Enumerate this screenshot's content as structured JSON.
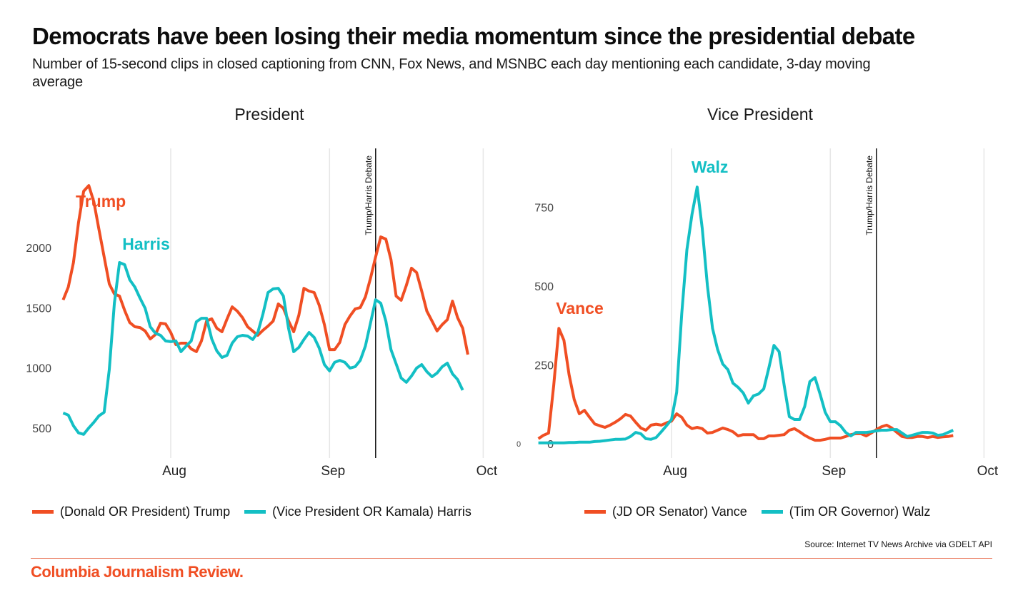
{
  "header": {
    "title": "Democrats have been losing their media momentum since the presidential debate",
    "subtitle": "Number of 15-second clips in closed captioning from CNN, Fox News, and MSNBC each day mentioning each candidate, 3-day moving average"
  },
  "colors": {
    "republican": "#f04e23",
    "democrat": "#13bfc4",
    "grid": "#e6e6e6",
    "annotation_line": "#111111",
    "brand": "#f04e23"
  },
  "chart_data": [
    {
      "type": "line",
      "title": "President",
      "xlabel": "",
      "ylabel": "",
      "x_start": "2024-07-11",
      "x_step": "1 day",
      "xlim": [
        "2024-07-11",
        "2024-10-01"
      ],
      "ylim": [
        0,
        2550
      ],
      "yticks": [
        500,
        1000,
        1500,
        2000
      ],
      "xticks": [
        {
          "label": "Aug",
          "date": "2024-08-01"
        },
        {
          "label": "Sep",
          "date": "2024-09-01"
        },
        {
          "label": "Oct",
          "date": "2024-10-01"
        }
      ],
      "grid": "vertical",
      "annotations": [
        {
          "label": "Trump/Harris Debate",
          "date": "2024-09-10"
        }
      ],
      "series": [
        {
          "name": "(Donald OR President) Trump",
          "short": "Trump",
          "color": "#f04e23",
          "label_at": "2024-07-14",
          "values": [
            1565,
            1672,
            1876,
            2208,
            2469,
            2516,
            2380,
            2149,
            1923,
            1698,
            1615,
            1597,
            1478,
            1377,
            1342,
            1336,
            1307,
            1241,
            1277,
            1372,
            1366,
            1295,
            1194,
            1206,
            1206,
            1158,
            1135,
            1224,
            1390,
            1408,
            1330,
            1301,
            1408,
            1508,
            1472,
            1419,
            1342,
            1307,
            1271,
            1313,
            1348,
            1390,
            1532,
            1496,
            1390,
            1301,
            1437,
            1662,
            1639,
            1627,
            1520,
            1360,
            1152,
            1152,
            1212,
            1360,
            1431,
            1490,
            1502,
            1591,
            1745,
            1923,
            2089,
            2071,
            1900,
            1597,
            1562,
            1686,
            1829,
            1793,
            1639,
            1472,
            1390,
            1307,
            1360,
            1401,
            1556,
            1419,
            1330,
            1111
          ]
        },
        {
          "name": "(Vice President OR Kamala) Harris",
          "short": "Harris",
          "color": "#13bfc4",
          "label_at": "2024-07-22",
          "values": [
            625,
            608,
            519,
            460,
            448,
            501,
            548,
            602,
            631,
            987,
            1538,
            1876,
            1858,
            1733,
            1672,
            1580,
            1496,
            1342,
            1289,
            1271,
            1224,
            1218,
            1224,
            1135,
            1182,
            1224,
            1384,
            1413,
            1413,
            1241,
            1141,
            1087,
            1105,
            1206,
            1259,
            1271,
            1265,
            1236,
            1295,
            1449,
            1627,
            1657,
            1662,
            1597,
            1330,
            1135,
            1170,
            1236,
            1295,
            1254,
            1164,
            1028,
            975,
            1046,
            1063,
            1046,
            999,
            1010,
            1063,
            1182,
            1372,
            1567,
            1538,
            1390,
            1152,
            1034,
            916,
            880,
            933,
            999,
            1028,
            969,
            927,
            957,
            1010,
            1040,
            951,
            904,
            815
          ]
        }
      ],
      "legend": "bottom-left"
    },
    {
      "type": "line",
      "title": "Vice President",
      "xlabel": "",
      "ylabel": "",
      "x_start": "2024-07-06",
      "x_step": "1 day",
      "xlim": [
        "2024-07-06",
        "2024-10-01"
      ],
      "ylim": [
        0,
        900
      ],
      "yticks": [
        0,
        250,
        500,
        750
      ],
      "extra_tick_label": "0",
      "xticks": [
        {
          "label": "Aug",
          "date": "2024-08-01"
        },
        {
          "label": "Sep",
          "date": "2024-09-01"
        },
        {
          "label": "Oct",
          "date": "2024-10-01"
        }
      ],
      "grid": "vertical",
      "annotations": [
        {
          "label": "Trump/Harris Debate",
          "date": "2024-09-10"
        }
      ],
      "series": [
        {
          "name": "(JD OR Senator) Vance",
          "short": "Vance",
          "color": "#f04e23",
          "label_at": "2024-07-10",
          "values": [
            16,
            27,
            34,
            185,
            366,
            328,
            219,
            140,
            95,
            106,
            84,
            63,
            57,
            52,
            59,
            68,
            79,
            93,
            88,
            68,
            50,
            43,
            59,
            62,
            59,
            66,
            72,
            95,
            84,
            59,
            48,
            52,
            48,
            34,
            36,
            43,
            50,
            45,
            38,
            25,
            29,
            29,
            29,
            16,
            16,
            25,
            25,
            27,
            29,
            43,
            48,
            38,
            27,
            18,
            11,
            11,
            14,
            18,
            18,
            18,
            23,
            29,
            32,
            32,
            25,
            34,
            45,
            54,
            59,
            50,
            36,
            23,
            20,
            20,
            23,
            23,
            20,
            23,
            20,
            22,
            23,
            26
          ]
        },
        {
          "name": "(Tim OR Governor) Walz",
          "short": "Walz",
          "color": "#13bfc4",
          "label_at": "2024-08-06",
          "values": [
            3,
            3,
            3,
            3,
            3,
            3,
            4,
            4,
            5,
            5,
            5,
            7,
            8,
            10,
            12,
            14,
            14,
            15,
            23,
            36,
            32,
            16,
            14,
            20,
            38,
            57,
            77,
            163,
            412,
            615,
            728,
            814,
            683,
            502,
            366,
            299,
            253,
            235,
            192,
            179,
            161,
            129,
            152,
            158,
            174,
            240,
            312,
            292,
            185,
            86,
            77,
            77,
            118,
            197,
            210,
            158,
            100,
            70,
            70,
            57,
            36,
            25,
            36,
            36,
            36,
            38,
            41,
            43,
            43,
            45,
            45,
            34,
            23,
            27,
            32,
            36,
            36,
            34,
            27,
            29,
            36,
            43
          ]
        }
      ],
      "legend": "bottom-right"
    }
  ],
  "legend": {
    "president": [
      {
        "label": "(Donald OR President) Trump",
        "color": "#f04e23"
      },
      {
        "label": "(Vice President OR Kamala) Harris",
        "color": "#13bfc4"
      }
    ],
    "vice_president": [
      {
        "label": "(JD OR Senator) Vance",
        "color": "#f04e23"
      },
      {
        "label": "(Tim OR Governor) Walz",
        "color": "#13bfc4"
      }
    ]
  },
  "footer": {
    "source": "Source: Internet TV News Archive via GDELT API",
    "brand": "Columbia Journalism Review."
  }
}
